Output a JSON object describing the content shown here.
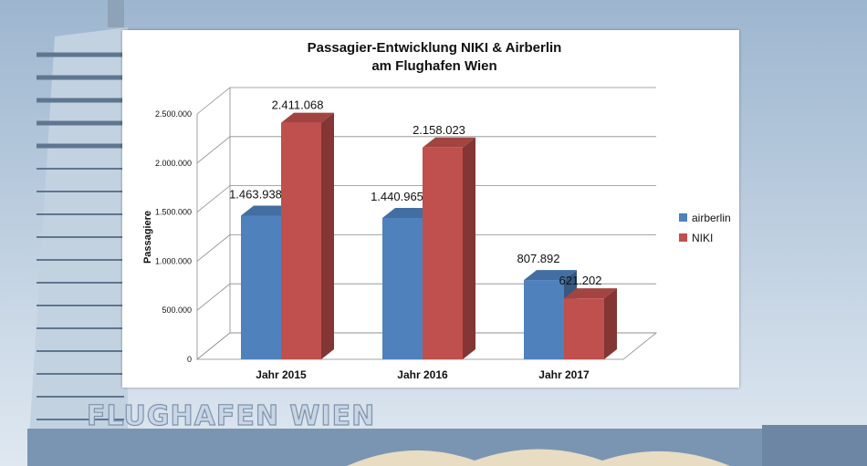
{
  "background": {
    "sky_top": "#9db6cf",
    "sky_bottom": "#dfe8f1",
    "tower": "#c3d2e1",
    "building": "#7a95b2",
    "sign_text": "FLUGHAFEN WIEN"
  },
  "chart_data": {
    "type": "bar",
    "title_lines": [
      "Passagier-Entwicklung NIKI & Airberlin",
      "am Flughafen Wien"
    ],
    "categories": [
      "Jahr 2015",
      "Jahr 2016",
      "Jahr 2017"
    ],
    "series": [
      {
        "name": "airberlin",
        "color": "#4f81bd",
        "values": [
          1463938,
          1440965,
          807892
        ],
        "labels": [
          "1.463.938",
          "1.440.965",
          "807.892"
        ]
      },
      {
        "name": "NIKI",
        "color": "#c0504d",
        "values": [
          2411068,
          2158023,
          621202
        ],
        "labels": [
          "2.411.068",
          "2.158.023",
          "621.202"
        ]
      }
    ],
    "ylabel": "Passagiere",
    "xlabel": "",
    "ylim": [
      0,
      2500000
    ],
    "yticks": [
      0,
      500000,
      1000000,
      1500000,
      2000000,
      2500000
    ],
    "ytick_labels": [
      "0",
      "500.000",
      "1.000.000",
      "1.500.000",
      "2.000.000",
      "2.500.000"
    ],
    "grid": true,
    "legend": "right",
    "style": "3d-column"
  }
}
